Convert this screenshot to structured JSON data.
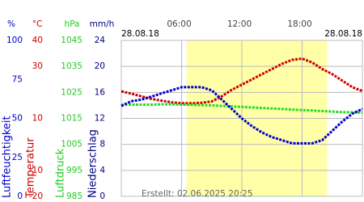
{
  "chart_data": {
    "type": "line",
    "date_left": "28.08.18",
    "date_right": "28.08.18",
    "created": "Erstellt: 02.06.2025 20:25",
    "xlim": [
      0,
      24
    ],
    "xticks": [
      {
        "value": 6,
        "label": "06:00"
      },
      {
        "value": 12,
        "label": "12:00"
      },
      {
        "value": 18,
        "label": "18:00"
      }
    ],
    "daylight": [
      6.5,
      20.5
    ],
    "daylight_color": "#ffffa8",
    "grid": true,
    "x": [
      0,
      1,
      2,
      3,
      4,
      5,
      6,
      7,
      8,
      9,
      10,
      11,
      12,
      13,
      14,
      15,
      16,
      17,
      18,
      19,
      20,
      21,
      22,
      23,
      24
    ],
    "axes": [
      {
        "unit": "%",
        "title": "Luftfeuchtigkeit",
        "color": "#0000cc",
        "ylim": [
          0,
          100
        ],
        "yticks": [
          0,
          25,
          50,
          75,
          100
        ]
      },
      {
        "unit": "°C",
        "title": "Temperatur",
        "color": "#cc0000",
        "ylim": [
          -20,
          40
        ],
        "yticks": [
          -20,
          -10,
          10,
          30,
          40
        ]
      },
      {
        "unit": "hPa",
        "title": "Luftdruck",
        "color": "#22cc22",
        "ylim": [
          985,
          1045
        ],
        "yticks": [
          985,
          995,
          1005,
          1015,
          1025,
          1035,
          1045
        ]
      },
      {
        "unit": "mm/h",
        "title": "Niederschlag",
        "color": "#000080",
        "ylim": [
          0,
          24
        ],
        "yticks": [
          0,
          4,
          8,
          12,
          16,
          20,
          24
        ]
      }
    ],
    "series": [
      {
        "name": "Temperatur",
        "axis": 1,
        "color": "#cc0000",
        "values": [
          20.4,
          19.5,
          18.5,
          17.5,
          16.8,
          16.2,
          15.8,
          15.8,
          16.0,
          16.5,
          18.5,
          21,
          23,
          25,
          27,
          29,
          31,
          32.5,
          33,
          31.5,
          29,
          27,
          24.5,
          22,
          20.5
        ]
      },
      {
        "name": "Luftdruck",
        "axis": 2,
        "color": "#22dd22",
        "values": [
          1020.2,
          1020.3,
          1020.3,
          1020.3,
          1020.4,
          1020.4,
          1020.3,
          1020.2,
          1020.1,
          1020.0,
          1019.8,
          1019.6,
          1019.4,
          1019.2,
          1019.0,
          1018.8,
          1018.6,
          1018.4,
          1018.2,
          1018.0,
          1017.8,
          1017.6,
          1017.4,
          1017.3,
          1017.2
        ]
      },
      {
        "name": "Luftfeuchtigkeit",
        "axis": 0,
        "color": "#0000cc",
        "values": [
          58,
          61,
          62,
          64,
          66,
          68,
          70,
          70,
          70,
          68,
          62,
          56,
          50,
          45,
          41,
          38,
          36,
          34,
          34,
          34,
          36,
          42,
          48,
          53,
          56
        ]
      }
    ]
  }
}
